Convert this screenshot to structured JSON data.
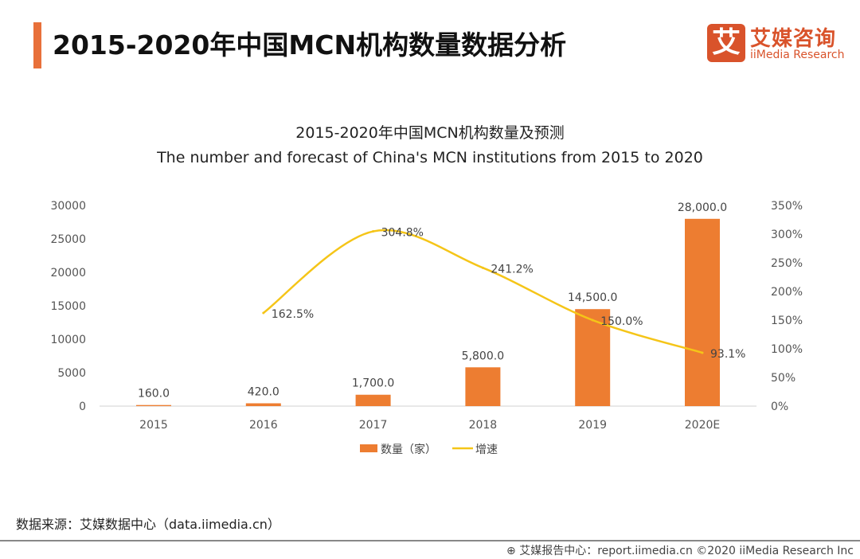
{
  "header": {
    "title": "2015-2020年中国MCN机构数量数据分析",
    "logo_cn": "艾媒咨询",
    "logo_en": "iiMedia Research",
    "logo_mark": "艾"
  },
  "chart_data": {
    "type": "bar+line",
    "title": "2015-2020年中国MCN机构数量及预测",
    "subtitle": "The number and forecast of China's MCN institutions from 2015 to 2020",
    "categories": [
      "2015",
      "2016",
      "2017",
      "2018",
      "2019",
      "2020E"
    ],
    "series": [
      {
        "name": "数量（家）",
        "type": "bar",
        "axis": "left",
        "color": "#ed7d31",
        "values": [
          160,
          420,
          1700,
          5800,
          14500,
          28000
        ],
        "labels": [
          "160.0",
          "420.0",
          "1,700.0",
          "5,800.0",
          "14,500.0",
          "28,000.0"
        ]
      },
      {
        "name": "增速",
        "type": "line",
        "axis": "right",
        "color": "#f5c518",
        "values": [
          null,
          162.5,
          304.8,
          241.2,
          150.0,
          93.1
        ],
        "labels": [
          "",
          "162.5%",
          "304.8%",
          "241.2%",
          "150.0%",
          "93.1%"
        ]
      }
    ],
    "y_left": {
      "range": [
        0,
        30000
      ],
      "ticks": [
        "0",
        "5000",
        "10000",
        "15000",
        "20000",
        "25000",
        "30000"
      ]
    },
    "y_right": {
      "range": [
        0,
        350
      ],
      "ticks": [
        "0%",
        "50%",
        "100%",
        "150%",
        "200%",
        "250%",
        "300%",
        "350%"
      ]
    },
    "legend": "bottom",
    "grid": false
  },
  "source": "数据来源：艾媒数据中心（data.iimedia.cn）",
  "footer": "艾媒报告中心：report.iimedia.cn  ©2020  iiMedia Research Inc"
}
